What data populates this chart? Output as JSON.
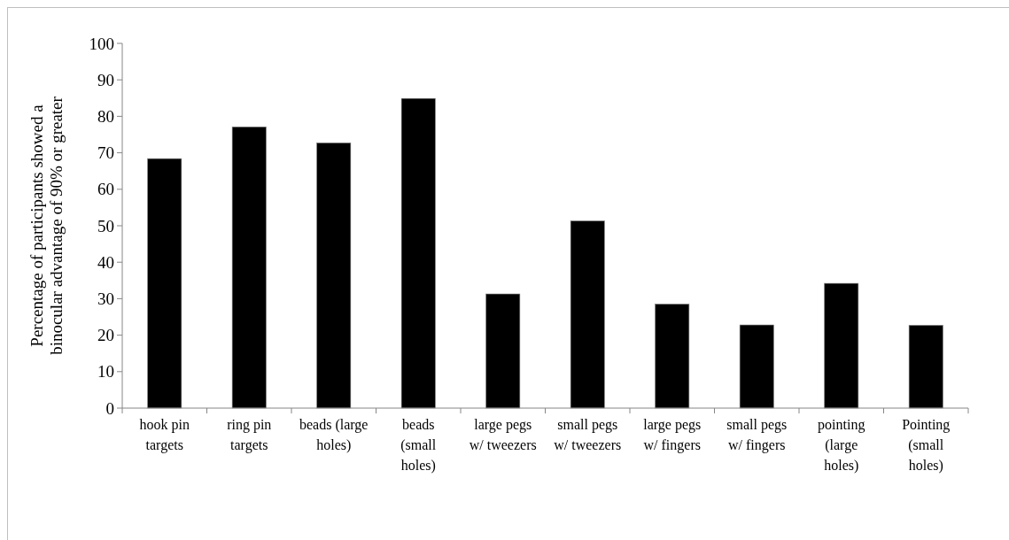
{
  "chart_data": {
    "type": "bar",
    "ylabel": "Percentage of participants showed a binocular advantage of 90% or greater",
    "categories": [
      "hook pin targets",
      "ring pin targets",
      "beads (large holes)",
      "beads (small holes)",
      "large pegs w/ tweezers",
      "small pegs w/ tweezers",
      "large pegs w/ fingers",
      "small pegs w/ fingers",
      "pointing (large holes)",
      "Pointing (small holes)"
    ],
    "values": [
      68.4,
      77.1,
      72.7,
      84.9,
      31.3,
      51.3,
      28.5,
      22.8,
      34.2,
      22.7
    ],
    "color": "#000000",
    "ylim": [
      0,
      100
    ],
    "yticks": [
      0,
      10,
      20,
      30,
      40,
      50,
      60,
      70,
      80,
      90,
      100
    ],
    "grid": false
  }
}
